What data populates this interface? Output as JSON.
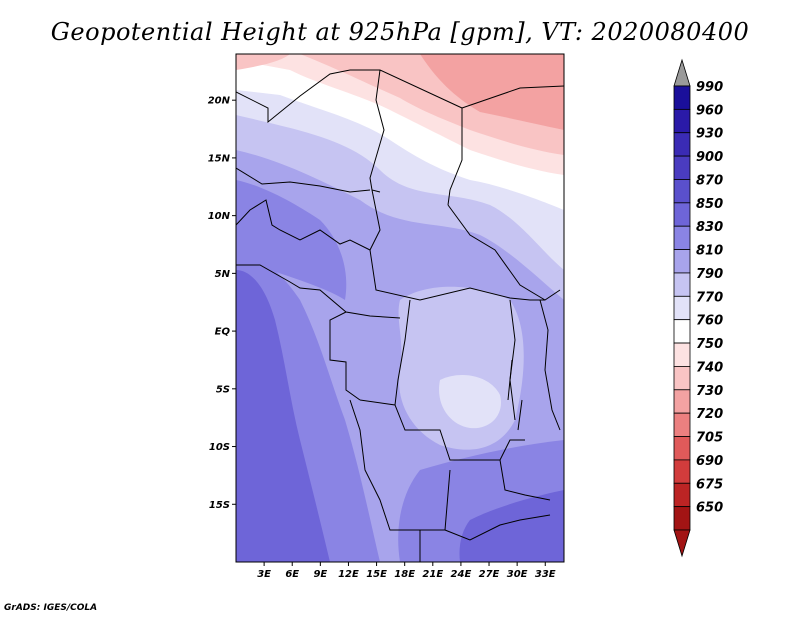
{
  "title": "Geopotential Height at 925hPa [gpm], VT: 2020080400",
  "footer": "GrADS: IGES/COLA",
  "map": {
    "lon_range": [
      0,
      35
    ],
    "lat_range": [
      -20,
      24
    ],
    "lat_ticks": [
      {
        "lat": 20,
        "label": "20N"
      },
      {
        "lat": 15,
        "label": "15N"
      },
      {
        "lat": 10,
        "label": "10N"
      },
      {
        "lat": 5,
        "label": "5N"
      },
      {
        "lat": 0,
        "label": "EQ"
      },
      {
        "lat": -5,
        "label": "5S"
      },
      {
        "lat": -10,
        "label": "10S"
      },
      {
        "lat": -15,
        "label": "15S"
      }
    ],
    "lon_ticks": [
      {
        "lon": 3,
        "label": "3E"
      },
      {
        "lon": 6,
        "label": "6E"
      },
      {
        "lon": 9,
        "label": "9E"
      },
      {
        "lon": 12,
        "label": "12E"
      },
      {
        "lon": 15,
        "label": "15E"
      },
      {
        "lon": 18,
        "label": "18E"
      },
      {
        "lon": 21,
        "label": "21E"
      },
      {
        "lon": 24,
        "label": "24E"
      },
      {
        "lon": 27,
        "label": "27E"
      },
      {
        "lon": 30,
        "label": "30E"
      },
      {
        "lon": 33,
        "label": "33E"
      }
    ]
  },
  "colorbar": {
    "levels": [
      {
        "label": "990",
        "color": "#1a0f9a"
      },
      {
        "label": "960",
        "color": "#2a1aa8"
      },
      {
        "label": "930",
        "color": "#3a2bb5"
      },
      {
        "label": "900",
        "color": "#4a3cc0"
      },
      {
        "label": "870",
        "color": "#5a50cc"
      },
      {
        "label": "850",
        "color": "#6e65d8"
      },
      {
        "label": "830",
        "color": "#8a84e4"
      },
      {
        "label": "810",
        "color": "#a8a4ec"
      },
      {
        "label": "790",
        "color": "#c6c4f2"
      },
      {
        "label": "770",
        "color": "#e2e2f8"
      },
      {
        "label": "760",
        "color": "#ffffff"
      },
      {
        "label": "750",
        "color": "#fde2e2"
      },
      {
        "label": "740",
        "color": "#f9c4c4"
      },
      {
        "label": "730",
        "color": "#f3a2a2"
      },
      {
        "label": "720",
        "color": "#ec8080"
      },
      {
        "label": "705",
        "color": "#e05a5a"
      },
      {
        "label": "690",
        "color": "#d23c3c"
      },
      {
        "label": "675",
        "color": "#bc2424"
      },
      {
        "label": "650",
        "color": "#a21414"
      }
    ],
    "top_triangle_color": "#9a9a9a",
    "bottom_triangle_color": "#a21414"
  }
}
